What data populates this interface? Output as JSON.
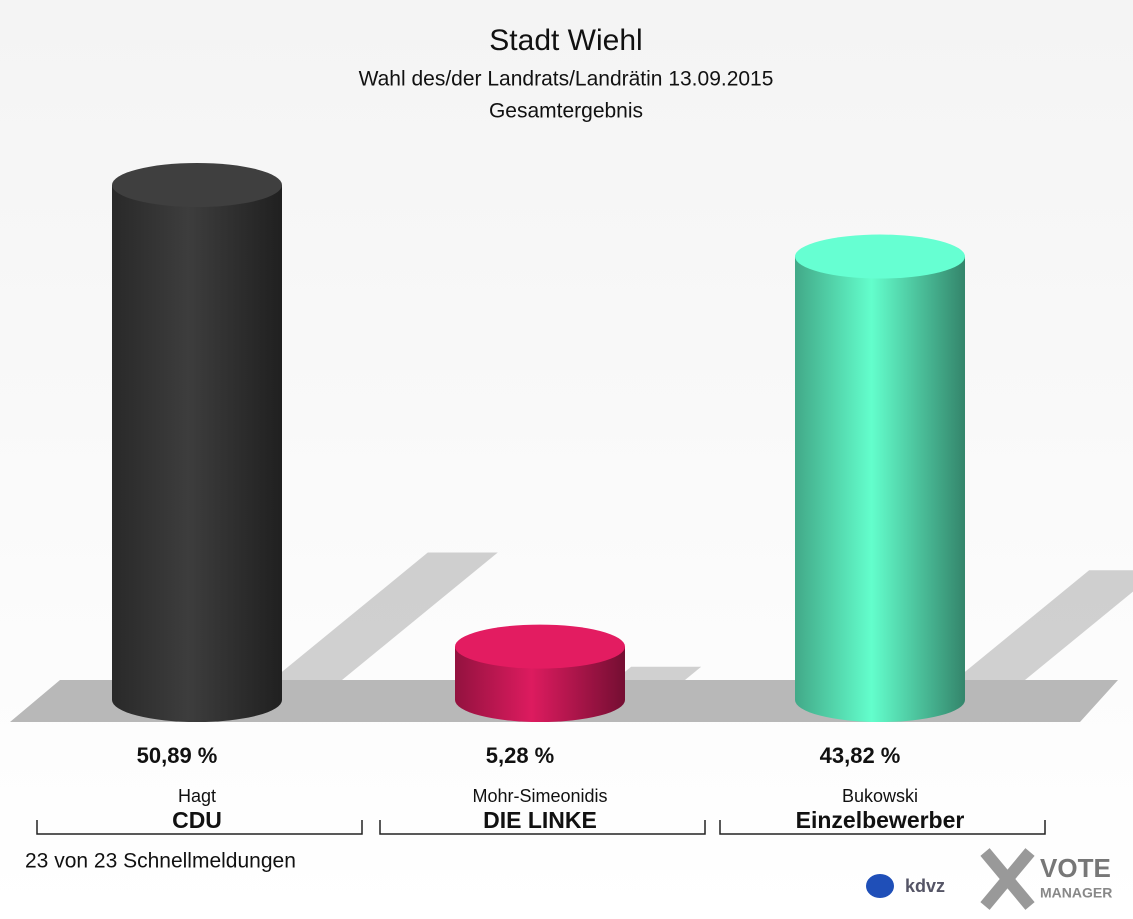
{
  "chart_data": {
    "type": "bar",
    "title": "Stadt Wiehl",
    "subtitle": "Wahl des/der Landrats/Landrätin 13.09.2015",
    "subtitle2": "Gesamtergebnis",
    "categories": [
      "Hagt",
      "Mohr-Simeonidis",
      "Bukowski"
    ],
    "parties": [
      "CDU",
      "DIE LINKE",
      "Einzelbewerber"
    ],
    "values": [
      50.89,
      5.28,
      43.82
    ],
    "value_labels": [
      "50,89 %",
      "5,28 %",
      "43,82 %"
    ],
    "colors": [
      "#3a3a3a",
      "#d21a5a",
      "#5ef2c2"
    ],
    "footer": "23 von 23 Schnellmeldungen",
    "logo": [
      "kdvz",
      "VOTE",
      "MANAGER"
    ]
  }
}
